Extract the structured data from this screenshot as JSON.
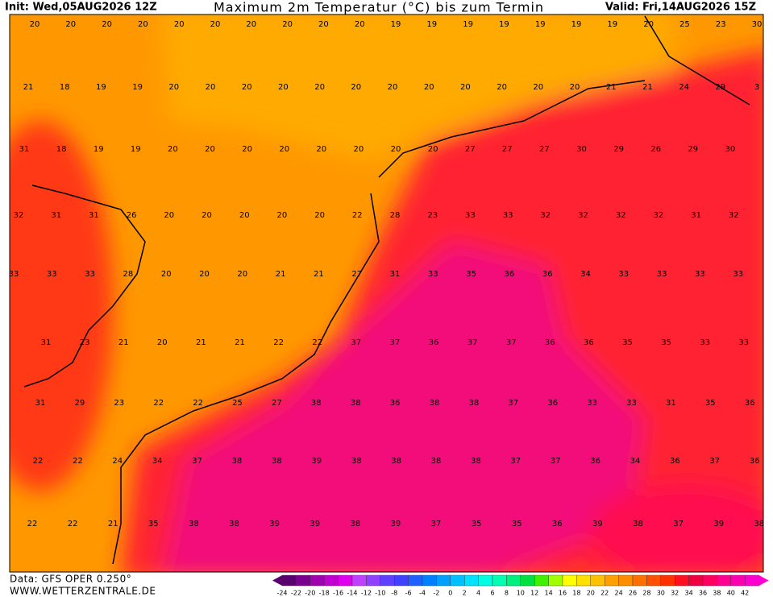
{
  "header": {
    "init": "Init: Wed,05AUG2026 12Z",
    "title": "Maximum 2m Temperatur (°C) bis zum Termin",
    "valid": "Valid: Fri,14AUG2026 15Z"
  },
  "footer": {
    "source": "Data: GFS OPER 0.250°",
    "site": "WWW.WETTERZENTRALE.DE"
  },
  "map": {
    "rows": [
      [
        20,
        20,
        20,
        20,
        20,
        20,
        20,
        20,
        20,
        20,
        19,
        19,
        19,
        19,
        19,
        19,
        19,
        20,
        25,
        23,
        30
      ],
      [
        21,
        18,
        19,
        19,
        20,
        20,
        20,
        20,
        20,
        20,
        20,
        20,
        20,
        20,
        20,
        20,
        21,
        21,
        24,
        29,
        3
      ],
      [
        31,
        18,
        19,
        19,
        20,
        20,
        20,
        20,
        20,
        20,
        20,
        20,
        27,
        27,
        27,
        30,
        29,
        26,
        29,
        30
      ],
      [
        32,
        31,
        31,
        26,
        20,
        20,
        20,
        20,
        20,
        22,
        28,
        23,
        33,
        33,
        32,
        32,
        32,
        32,
        31,
        32
      ],
      [
        33,
        33,
        33,
        28,
        20,
        20,
        20,
        21,
        21,
        27,
        31,
        33,
        35,
        36,
        36,
        34,
        33,
        33,
        33,
        33
      ],
      [
        31,
        23,
        21,
        20,
        21,
        21,
        22,
        22,
        37,
        37,
        36,
        37,
        37,
        36,
        36,
        35,
        35,
        33,
        33
      ],
      [
        31,
        29,
        23,
        22,
        22,
        25,
        27,
        38,
        38,
        36,
        38,
        38,
        37,
        36,
        33,
        33,
        31,
        35,
        36
      ],
      [
        22,
        22,
        24,
        34,
        37,
        38,
        38,
        39,
        38,
        38,
        38,
        38,
        37,
        37,
        36,
        34,
        36,
        37,
        36
      ],
      [
        22,
        22,
        21,
        35,
        38,
        38,
        39,
        39,
        38,
        39,
        37,
        35,
        35,
        36,
        39,
        38,
        37,
        39,
        38
      ]
    ]
  },
  "legend": {
    "ticks": [
      -24,
      -22,
      -20,
      -18,
      -16,
      -14,
      -12,
      -10,
      -8,
      -6,
      -4,
      -2,
      0,
      2,
      4,
      6,
      8,
      10,
      12,
      14,
      16,
      18,
      20,
      22,
      24,
      26,
      28,
      30,
      32,
      34,
      36,
      38,
      40,
      42
    ],
    "colors": [
      "#5a0070",
      "#7a0090",
      "#a000b0",
      "#c000d0",
      "#e000f0",
      "#c040ff",
      "#9040ff",
      "#6040ff",
      "#4040ff",
      "#2060ff",
      "#0080ff",
      "#00a0ff",
      "#00c0ff",
      "#00e0ff",
      "#00ffe0",
      "#00ffb0",
      "#00f080",
      "#00e040",
      "#40f000",
      "#a0ff00",
      "#ffff00",
      "#ffe000",
      "#ffc000",
      "#ffa000",
      "#ff8c00",
      "#ff7000",
      "#ff5000",
      "#ff3000",
      "#ff1020",
      "#f00040",
      "#ff0060",
      "#ff0090",
      "#ff00b0",
      "#ff00d0"
    ]
  }
}
